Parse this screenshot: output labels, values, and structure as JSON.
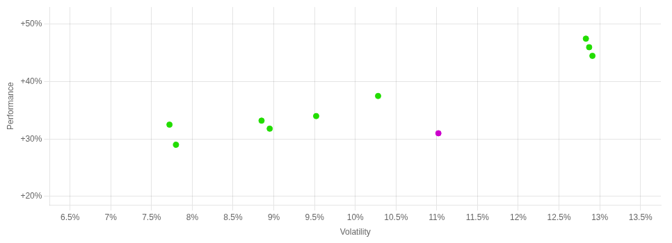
{
  "chart_data": {
    "type": "scatter",
    "xlabel": "Volatility",
    "ylabel": "Performance",
    "series": [
      {
        "color": "#22dd00",
        "x": [
          7.72,
          7.8,
          8.85,
          8.95,
          9.52,
          10.28,
          12.83,
          12.87,
          12.91
        ],
        "values": [
          32.5,
          29.0,
          33.2,
          31.8,
          34.0,
          37.5,
          47.5,
          46.0,
          44.5
        ]
      },
      {
        "color": "#cc00cc",
        "x": [
          11.02
        ],
        "values": [
          31.0
        ]
      }
    ],
    "xlim": [
      6.25,
      13.75
    ],
    "ylim": [
      18.5,
      53.0
    ],
    "xticks": [
      {
        "value": 6.5,
        "label": "6.5%"
      },
      {
        "value": 7.0,
        "label": "7%"
      },
      {
        "value": 7.5,
        "label": "7.5%"
      },
      {
        "value": 8.0,
        "label": "8%"
      },
      {
        "value": 8.5,
        "label": "8.5%"
      },
      {
        "value": 9.0,
        "label": "9%"
      },
      {
        "value": 9.5,
        "label": "9.5%"
      },
      {
        "value": 10.0,
        "label": "10%"
      },
      {
        "value": 10.5,
        "label": "10.5%"
      },
      {
        "value": 11.0,
        "label": "11%"
      },
      {
        "value": 11.5,
        "label": "11.5%"
      },
      {
        "value": 12.0,
        "label": "12%"
      },
      {
        "value": 12.5,
        "label": "12.5%"
      },
      {
        "value": 13.0,
        "label": "13%"
      },
      {
        "value": 13.5,
        "label": "13.5%"
      }
    ],
    "yticks": [
      {
        "value": 20,
        "label": "+20%"
      },
      {
        "value": 30,
        "label": "+30%"
      },
      {
        "value": 40,
        "label": "+40%"
      },
      {
        "value": 50,
        "label": "+50%"
      }
    ],
    "grid": true
  }
}
